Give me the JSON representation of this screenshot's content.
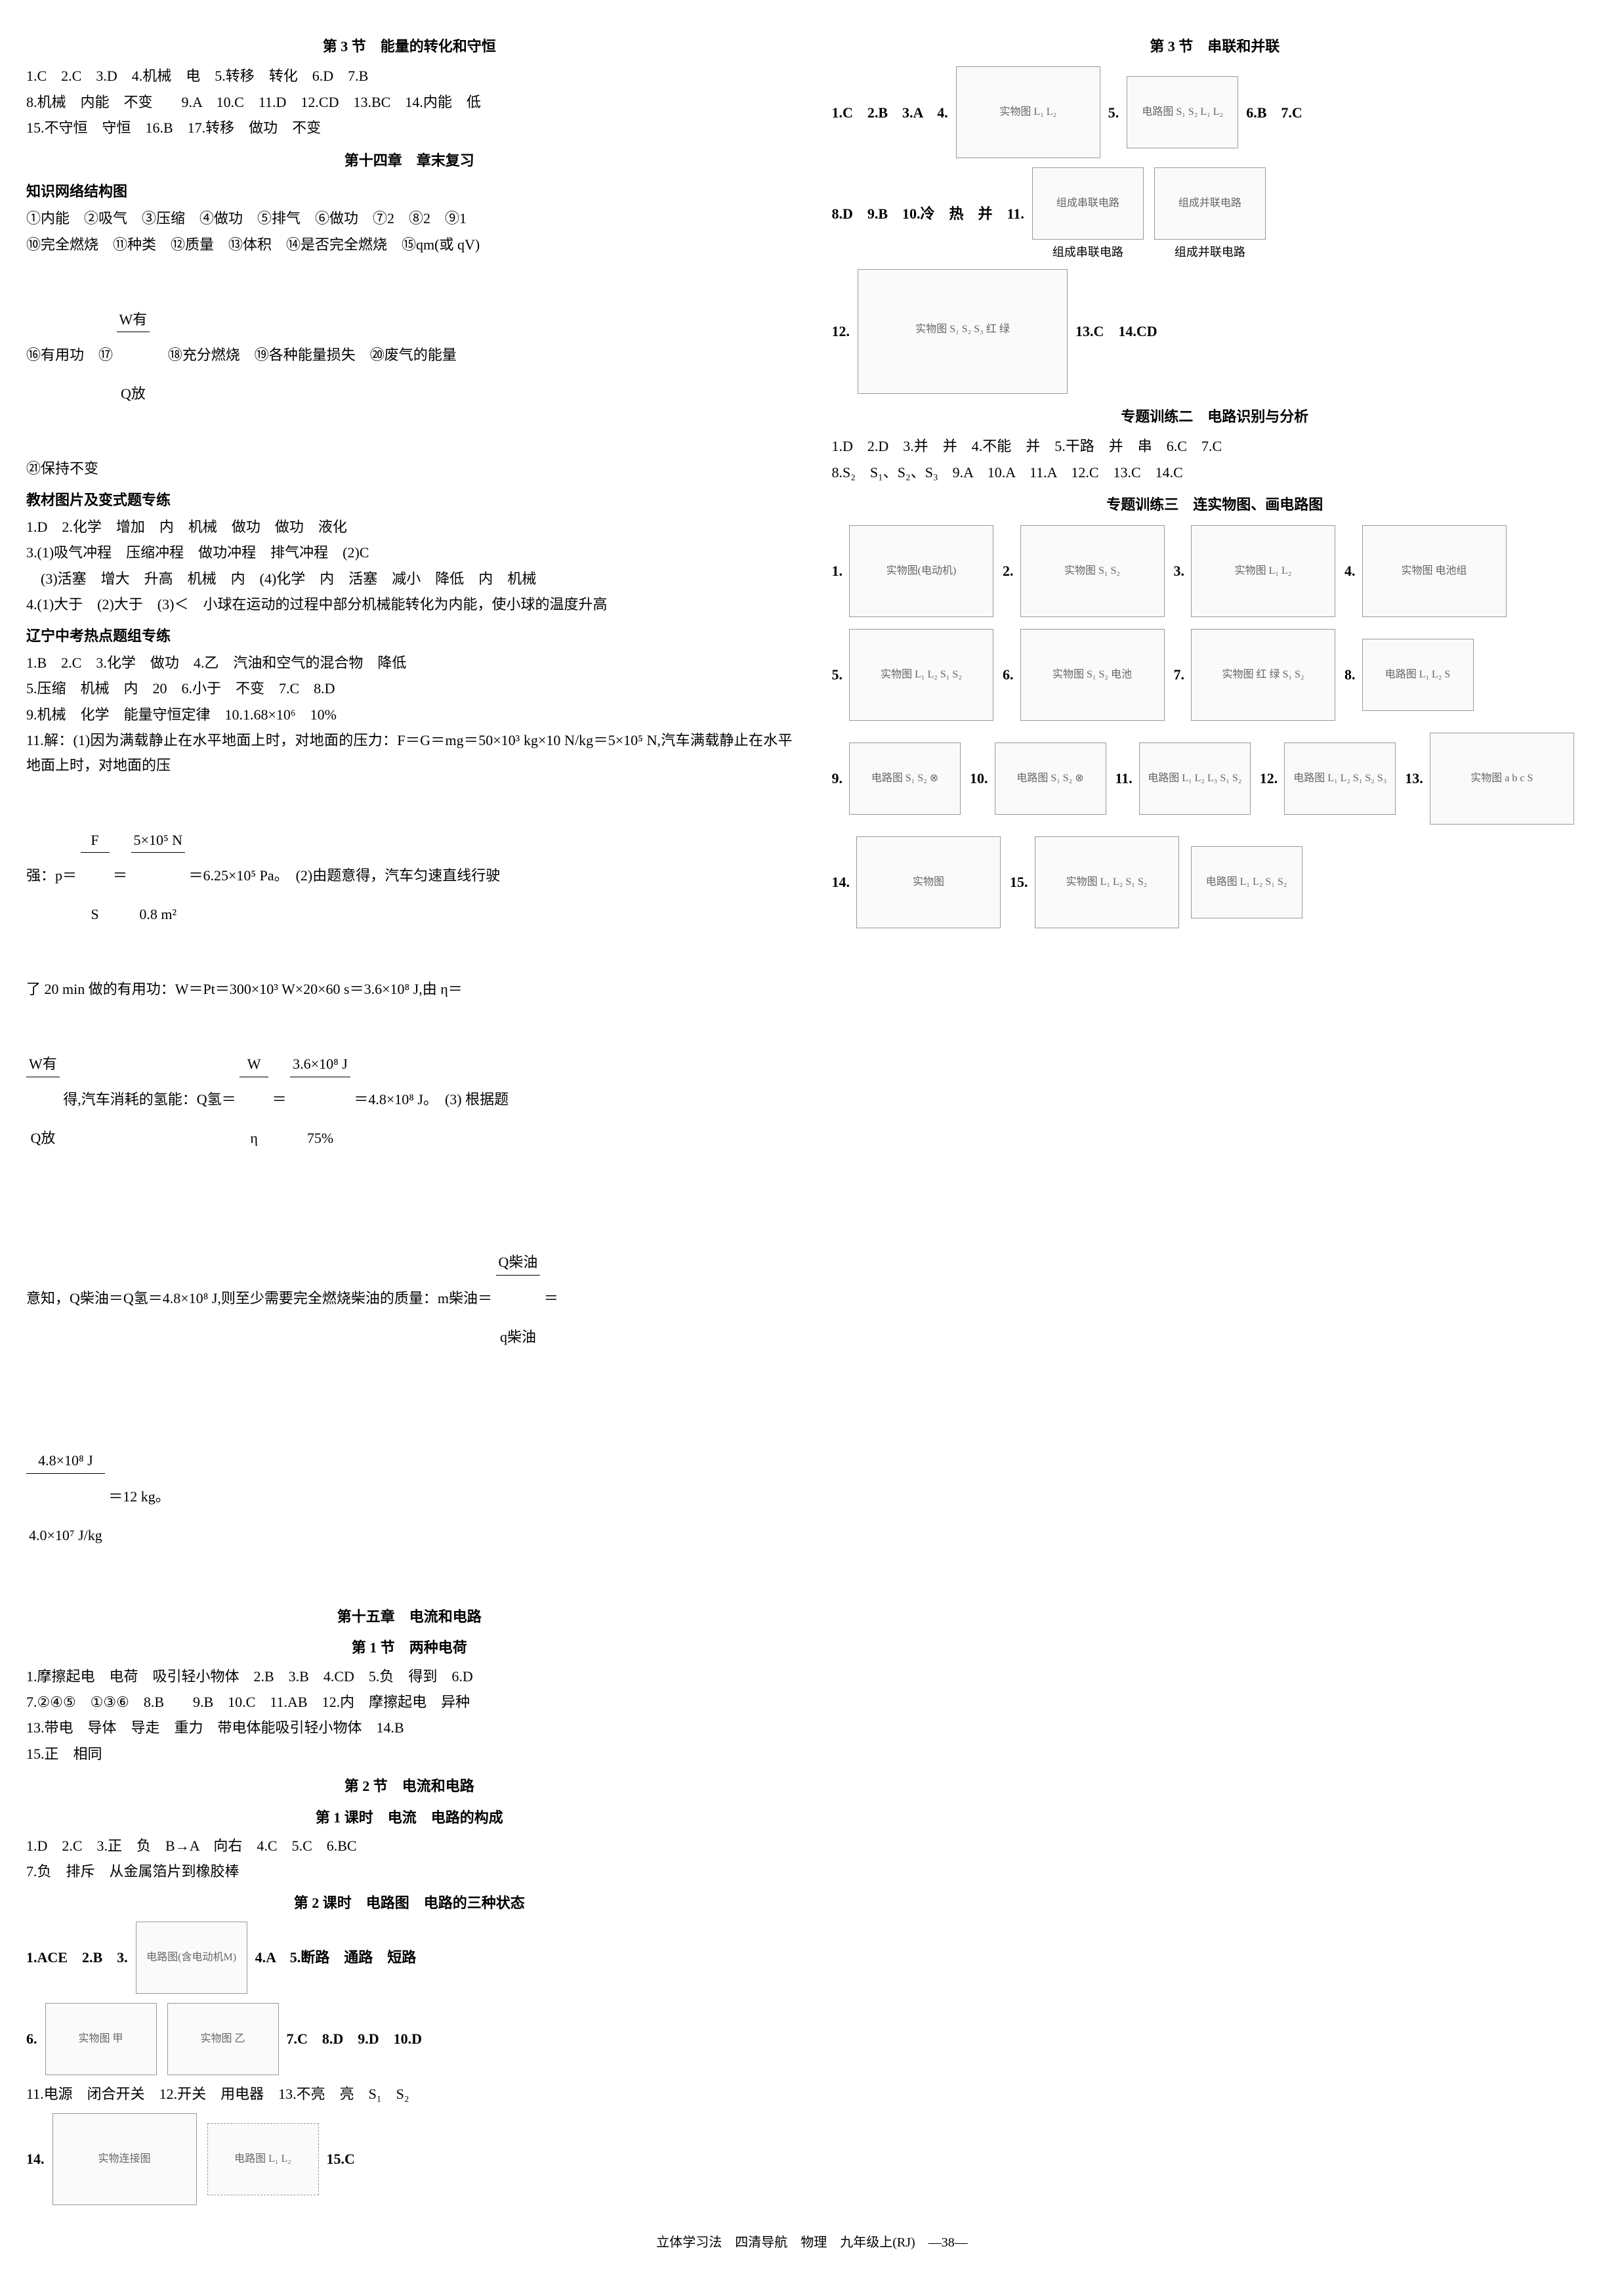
{
  "footer": "立体学习法　四清导航　物理　九年级上(RJ)　—38—",
  "left": {
    "s1": {
      "title": "第 3 节　能量的转化和守恒",
      "l1": "1.C　2.C　3.D　4.机械　电　5.转移　转化　6.D　7.B",
      "l2": "8.机械　内能　不变　　9.A　10.C　11.D　12.CD　13.BC　14.内能　低",
      "l3": "15.不守恒　守恒　16.B　17.转移　做功　不变"
    },
    "s2": {
      "title": "第十四章　章末复习",
      "h1": "知识网络结构图",
      "l1": "①内能　②吸气　③压缩　④做功　⑤排气　⑥做功　⑦2　⑧2　⑨1",
      "l2": "⑩完全燃烧　⑪种类　⑫质量　⑬体积　⑭是否完全燃烧　⑮qm(或 qV)",
      "l3_pre": "⑯有用功　⑰",
      "l3_frac_num": "W有",
      "l3_frac_den": "Q放",
      "l3_post": "　⑱充分燃烧　⑲各种能量损失　⑳废气的能量",
      "l4": "㉑保持不变",
      "h2": "教材图片及变式题专练",
      "l5": "1.D　2.化学　增加　内　机械　做功　做功　液化",
      "l6": "3.(1)吸气冲程　压缩冲程　做功冲程　排气冲程　(2)C",
      "l7": "　(3)活塞　增大　升高　机械　内　(4)化学　内　活塞　减小　降低　内　机械",
      "l8": "4.(1)大于　(2)大于　(3)＜　小球在运动的过程中部分机械能转化为内能，使小球的温度升高",
      "h3": "辽宁中考热点题组专练",
      "l9": "1.B　2.C　3.化学　做功　4.乙　汽油和空气的混合物　降低",
      "l10": "5.压缩　机械　内　20　6.小于　不变　7.C　8.D",
      "l11": "9.机械　化学　能量守恒定律　10.1.68×10⁶　10%",
      "l12": "11.解：(1)因为满载静止在水平地面上时，对地面的压力：F＝G＝mg＝50×10³ kg×10 N/kg＝5×10⁵ N,汽车满载静止在水平地面上时，对地面的压",
      "l13_pre": "强：p＝",
      "l13_f1n": "F",
      "l13_f1d": "S",
      "l13_mid1": "＝",
      "l13_f2n": "5×10⁵ N",
      "l13_f2d": "0.8 m²",
      "l13_post": "＝6.25×10⁵ Pa。　(2)由题意得，汽车匀速直线行驶",
      "l14": "了 20 min 做的有用功：W＝Pt＝300×10³ W×20×60 s＝3.6×10⁸ J,由 η＝",
      "l15_f1n": "W有",
      "l15_f1d": "Q放",
      "l15_mid": "得,汽车消耗的氢能：Q氢＝",
      "l15_f2n": "W",
      "l15_f2d": "η",
      "l15_mid2": "＝",
      "l15_f3n": "3.6×10⁸ J",
      "l15_f3d": "75%",
      "l15_post": "＝4.8×10⁸ J。　(3) 根据题",
      "l16_pre": "意知，Q柴油＝Q氢＝4.8×10⁸ J,则至少需要完全燃烧柴油的质量：m柴油＝",
      "l16_fn": "Q柴油",
      "l16_fd": "q柴油",
      "l16_eq": "＝",
      "l17_fn": "4.8×10⁸ J",
      "l17_fd": "4.0×10⁷ J/kg",
      "l17_post": "＝12 kg。"
    },
    "s3": {
      "title": "第十五章　电流和电路",
      "sub1": "第 1 节　两种电荷",
      "l1": "1.摩擦起电　电荷　吸引轻小物体　2.B　3.B　4.CD　5.负　得到　6.D",
      "l2": "7.②④⑤　①③⑥　8.B　　9.B　10.C　11.AB　12.内　摩擦起电　异种",
      "l3": "13.带电　导体　导走　重力　带电体能吸引轻小物体　14.B",
      "l4": "15.正　相同"
    },
    "s4": {
      "title": "第 2 节　电流和电路",
      "sub1": "第 1 课时　电流　电路的构成",
      "l1": "1.D　2.C　3.正　负　B→A　向右　4.C　5.C　6.BC",
      "l2": "7.负　排斥　从金属箔片到橡胶棒",
      "sub2": "第 2 课时　电路图　电路的三种状态",
      "r1_pre": "1.ACE　2.B　3.",
      "r1_post": "4.A　5.断路　通路　短路",
      "d3": "电路图(含电动机M)",
      "r2_pre": "6.",
      "r2_post": "7.C　8.D　9.D　10.D",
      "d6a": "实物图 甲",
      "d6b": "实物图 乙",
      "l3": "11.电源　闭合开关　12.开关　用电器　13.不亮　亮　S₁　S₂",
      "r3_pre": "14.",
      "r3_post": "15.C",
      "d14a": "实物连接图",
      "d14b": "电路图 L₁ L₂"
    }
  },
  "right": {
    "s1": {
      "title": "第 3 节　串联和并联",
      "r1_pre": "1.C　2.B　3.A　4.",
      "d4": "实物图 L₁ L₂",
      "r1_mid": "5.",
      "d5": "电路图 S₁ S₂ L₁ L₂",
      "r1_post": "6.B　7.C",
      "r2_pre": "8.D　9.B　10.冷　热　并　11.",
      "d11a": "组成串联电路",
      "d11b": "组成并联电路",
      "cap11a": "组成串联电路",
      "cap11b": "组成并联电路",
      "r3_pre": "12.",
      "d12": "实物图 S₁ S₂ S₃ 红 绿",
      "r3_post": "13.C　14.CD"
    },
    "s2": {
      "title": "专题训练二　电路识别与分析",
      "l1": "1.D　2.D　3.并　并　4.不能　并　5.干路　并　串　6.C　7.C",
      "l2": "8.S₂　S₁、S₂、S₃　9.A　10.A　11.A　12.C　13.C　14.C"
    },
    "s3": {
      "title": "专题训练三　连实物图、画电路图",
      "items": [
        {
          "n": "1.",
          "label": "实物图(电动机)"
        },
        {
          "n": "2.",
          "label": "实物图 S₁ S₂"
        },
        {
          "n": "3.",
          "label": "实物图 L₁ L₂"
        },
        {
          "n": "4.",
          "label": "实物图 电池组"
        },
        {
          "n": "5.",
          "label": "实物图 L₁ L₂ S₁ S₂"
        },
        {
          "n": "6.",
          "label": "实物图 S₁ S₂ 电池"
        },
        {
          "n": "7.",
          "label": "实物图 红 绿 S₁ S₂"
        },
        {
          "n": "8.",
          "label": "电路图 L₁ L₂ S"
        },
        {
          "n": "9.",
          "label": "电路图 S₁ S₂ ⊗"
        },
        {
          "n": "10.",
          "label": "电路图 S₁ S₂ ⊗"
        },
        {
          "n": "11.",
          "label": "电路图 L₁ L₂ L₃ S₁ S₂"
        },
        {
          "n": "12.",
          "label": "电路图 L₁ L₂ S₁ S₂ S₃"
        },
        {
          "n": "13.",
          "label": "实物图 a b c S"
        },
        {
          "n": "14.",
          "label": "实物图"
        },
        {
          "n": "15.",
          "label": "实物图 L₁ L₂ S₁ S₂"
        },
        {
          "n": "",
          "label": "电路图 L₁ L₂ S₁ S₂"
        }
      ]
    }
  }
}
